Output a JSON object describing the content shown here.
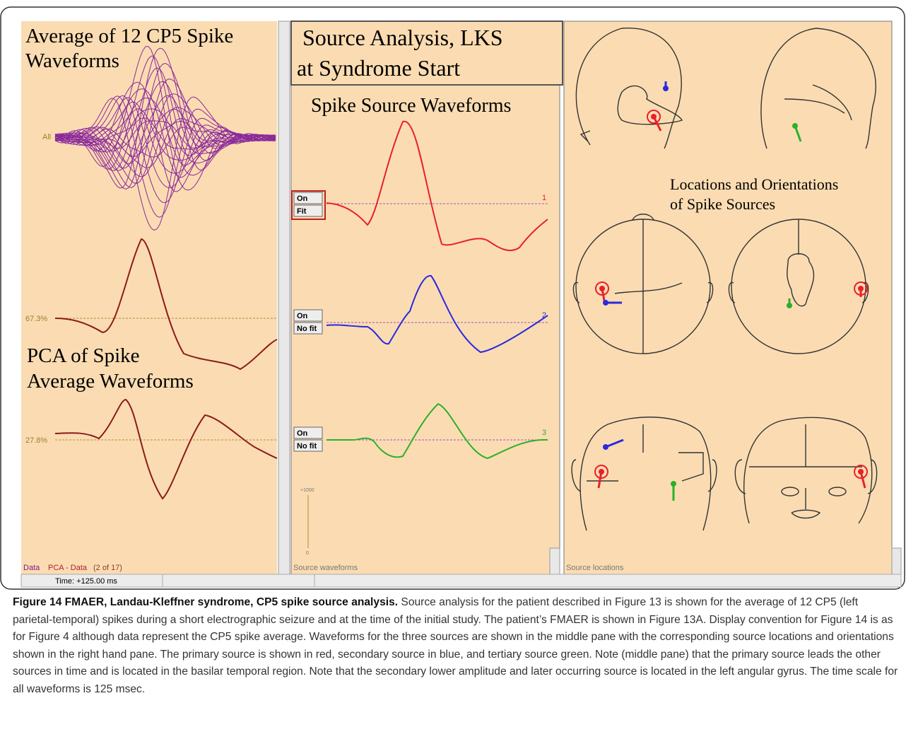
{
  "figure": {
    "left": {
      "title_lines": [
        "Average of 12 CP5 Spike",
        "Waveforms"
      ],
      "all_label": "All",
      "pca_labels": [
        "67.3%",
        "27.8%"
      ],
      "pca_title_lines": [
        "PCA of Spike",
        "Average Waveforms"
      ],
      "footer": {
        "data": "Data",
        "pca": "PCA - Data",
        "count": "(2 of 17)"
      },
      "time": "Time: +125.00 ms"
    },
    "middle": {
      "title_lines": [
        "Source Analysis, LKS",
        "at Syndrome Start"
      ],
      "subtitle": "Spike Source Waveforms",
      "sources": [
        {
          "on": "On",
          "fit": "Fit",
          "number": "1"
        },
        {
          "on": "On",
          "fit": "No fit",
          "number": "2"
        },
        {
          "on": "On",
          "fit": "No fit",
          "number": "3"
        }
      ],
      "scale": {
        "top": "+1000",
        "bottom": "0"
      },
      "footer": "Source waveforms"
    },
    "right": {
      "title_lines": [
        "Locations and Orientations",
        "of Spike Sources"
      ],
      "footer": "Source locations"
    }
  },
  "caption": {
    "heading": "Figure 14 FMAER, Landau-Kleffner syndrome, CP5 spike source analysis.",
    "body": "Source analysis for the patient described in Figure 13 is shown for the average of 12 CP5 (left parietal-temporal) spikes during a short electrographic seizure and at the time of the initial study. The patient’s FMAER is shown in Figure 13A. Display convention for Figure 14 is as for Figure 4 although data represent the CP5 spike average. Waveforms for the three sources are shown in the middle pane with the corresponding source locations and orientations shown in the right hand pane. The primary source is shown in red, secondary source in blue, and tertiary source green. Note (middle pane) that the primary source leads the other sources in time and is located in the basilar temporal region. Note that the secondary lower amplitude and later occurring source is located in the left angular gyrus. The time scale for all waveforms is 125 msec."
  }
}
